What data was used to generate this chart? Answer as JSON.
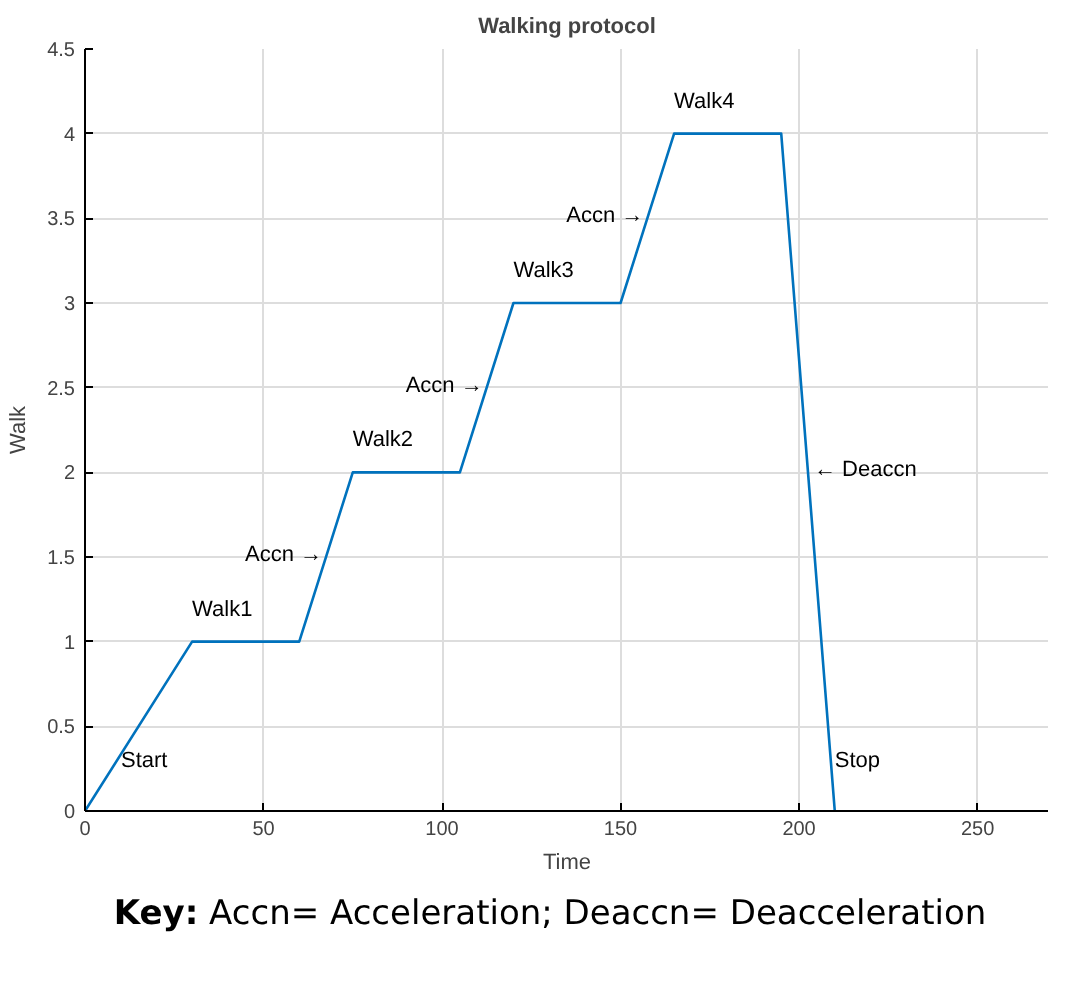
{
  "chart_data": {
    "type": "line",
    "title": "Walking protocol",
    "xlabel": "Time",
    "ylabel": "Walk",
    "x": [
      0,
      30,
      60,
      75,
      105,
      120,
      150,
      165,
      195,
      210
    ],
    "series": [
      {
        "color": "#0072bd",
        "values": [
          0,
          1,
          1,
          2,
          2,
          3,
          3,
          4,
          4,
          0
        ]
      }
    ],
    "xlim": [
      0,
      270
    ],
    "xticks": [
      0,
      50,
      100,
      150,
      200,
      250
    ],
    "ylim": [
      0,
      4.5
    ],
    "yticks": [
      0,
      0.5,
      1,
      1.5,
      2,
      2.5,
      3,
      3.5,
      4,
      4.5
    ],
    "grid": true,
    "marker": "none",
    "line_style": "solid",
    "annotations": [
      {
        "text": "Start",
        "x": 0,
        "y": 0
      },
      {
        "text": "Walk1",
        "x": 30,
        "y": 1
      },
      {
        "text": "Accn →",
        "x": 67.5,
        "y": 1.5
      },
      {
        "text": "Walk2",
        "x": 75,
        "y": 2
      },
      {
        "text": "Accn →",
        "x": 112.5,
        "y": 2.5
      },
      {
        "text": "Walk3",
        "x": 120,
        "y": 3
      },
      {
        "text": "Accn →",
        "x": 157.5,
        "y": 3.5
      },
      {
        "text": "Walk4",
        "x": 165,
        "y": 4
      },
      {
        "text": "← Deaccn",
        "x": 202.5,
        "y": 2
      },
      {
        "text": "Stop",
        "x": 210,
        "y": 0
      },
      "Key: Accn= Acceleration; Deaccn= Deacceleration"
    ]
  }
}
